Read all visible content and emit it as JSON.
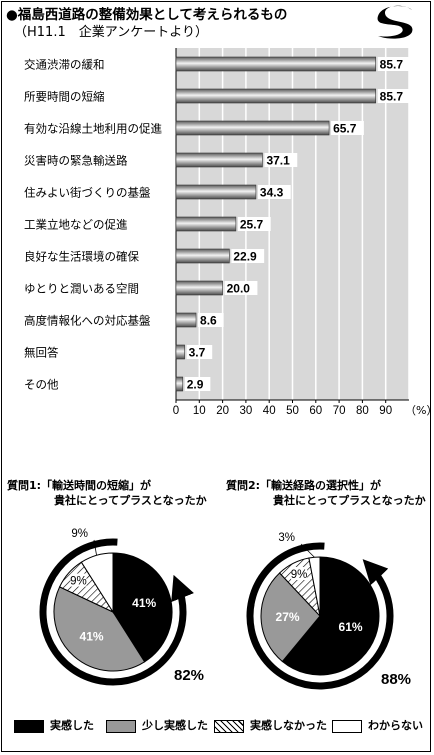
{
  "header": {
    "title": "●福島西道路の整備効果として考えられるもの",
    "subtitle": "（H11.1　企業アンケートより）"
  },
  "colors": {
    "bar": "#8c8c8c",
    "plot_bg": "#d8d8d8",
    "dark": "#000000",
    "gray": "#999999"
  },
  "chart_data": [
    {
      "type": "bar",
      "orientation": "horizontal",
      "categories": [
        "交通渋滞の緩和",
        "所要時間の短縮",
        "有効な沿線土地利用の促進",
        "災害時の緊急輸送路",
        "住みよい街づくりの基盤",
        "工業立地などの促進",
        "良好な生活環境の確保",
        "ゆとりと潤いある空間",
        "高度情報化への対応基盤",
        "無回答",
        "その他"
      ],
      "values": [
        85.7,
        85.7,
        65.7,
        37.1,
        34.3,
        25.7,
        22.9,
        20.0,
        8.6,
        3.7,
        2.9
      ],
      "value_labels": [
        "85.7",
        "85.7",
        "65.7",
        "37.1",
        "34.3",
        "25.7",
        "22.9",
        "20.0",
        "8.6",
        "3.7",
        "2.9"
      ],
      "xticks": [
        "0",
        "10",
        "20",
        "30",
        "40",
        "50",
        "60",
        "70",
        "80",
        "90"
      ],
      "xunit": "（%）",
      "xlim": [
        0,
        100
      ],
      "grid": true
    },
    {
      "type": "pie",
      "title_line1": "質問1:「輸送時間の短縮」が",
      "title_line2": "貴社にとってプラスとなったか",
      "slices": [
        {
          "label": "41%",
          "value": 41,
          "pattern": "solid-black"
        },
        {
          "label": "41%",
          "value": 41,
          "pattern": "gray"
        },
        {
          "label": "9%",
          "value": 9,
          "pattern": "hatched"
        },
        {
          "label": "9%",
          "value": 9,
          "pattern": "white"
        }
      ],
      "total_label": "82%",
      "total_value": 82
    },
    {
      "type": "pie",
      "title_line1": "質問2:「輸送経路の選択性」が",
      "title_line2": "貴社にとってプラスとなったか",
      "slices": [
        {
          "label": "61%",
          "value": 61,
          "pattern": "solid-black"
        },
        {
          "label": "27%",
          "value": 27,
          "pattern": "gray"
        },
        {
          "label": "9%",
          "value": 9,
          "pattern": "hatched"
        },
        {
          "label": "3%",
          "value": 3,
          "pattern": "white"
        }
      ],
      "total_label": "88%",
      "total_value": 88
    }
  ],
  "legend": [
    {
      "label": "実感した",
      "pattern": "solid-black"
    },
    {
      "label": "少し実感した",
      "pattern": "gray"
    },
    {
      "label": "実感しなかった",
      "pattern": "hatched"
    },
    {
      "label": "わからない",
      "pattern": "white"
    }
  ]
}
